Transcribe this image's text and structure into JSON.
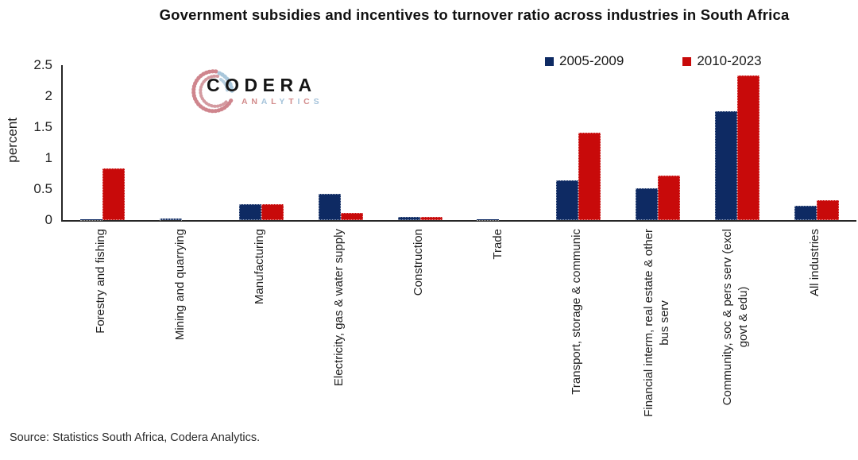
{
  "chart_data": {
    "type": "bar",
    "title": "Government subsidies and incentives to turnover ratio across industries in South Africa",
    "xlabel": "",
    "ylabel": "percent",
    "ylim": [
      0,
      2.5
    ],
    "yticks": [
      "0",
      "0.5",
      "1",
      "1.5",
      "2",
      "2.5"
    ],
    "ytick_values": [
      0,
      0.5,
      1,
      1.5,
      2,
      2.5
    ],
    "grid": false,
    "legend_position": "top-right",
    "categories": [
      "Forestry and fishing",
      "Mining and quarrying",
      "Manufacturing",
      "Electricity, gas & water supply",
      "Construction",
      "Trade",
      "Transport, storage & communic",
      "Financial interm, real estate & other bus serv",
      "Community, soc & pers serv (excl govt & edu)",
      "All industries"
    ],
    "category_display": [
      "Forestry and fishing",
      "Mining and quarrying",
      "Manufacturing",
      "Electricity, gas & water supply",
      "Construction",
      "Trade",
      "Transport, storage & communic",
      "Financial interm, real estate & other\nbus serv",
      "Community, soc & pers serv  (excl\ngovt & edu)",
      "All industries"
    ],
    "series": [
      {
        "name": "2005-2009",
        "color": "#0E2A63",
        "values": [
          0.01,
          0.02,
          0.26,
          0.42,
          0.05,
          0.01,
          0.64,
          0.51,
          1.75,
          0.23
        ]
      },
      {
        "name": "2010-2023",
        "color": "#C80A0A",
        "values": [
          0.83,
          0,
          0.26,
          0.12,
          0.05,
          0,
          1.41,
          0.72,
          2.33,
          0.32
        ]
      }
    ]
  },
  "source": {
    "text": "Source: Statistics South Africa, Codera Analytics."
  },
  "logo": {
    "wordmark": "CODERA",
    "subtext": "ANALYTICS",
    "letters": [
      {
        "ch": "A",
        "color": "#d28b8b"
      },
      {
        "ch": "N",
        "color": "#d28b8b"
      },
      {
        "ch": "A",
        "color": "#a5c3da"
      },
      {
        "ch": "L",
        "color": "#d28b8b"
      },
      {
        "ch": "Y",
        "color": "#a5c3da"
      },
      {
        "ch": "T",
        "color": "#d28b8b"
      },
      {
        "ch": "I",
        "color": "#a5c3da"
      },
      {
        "ch": "C",
        "color": "#d28b8b"
      },
      {
        "ch": "S",
        "color": "#a5c3da"
      }
    ]
  }
}
